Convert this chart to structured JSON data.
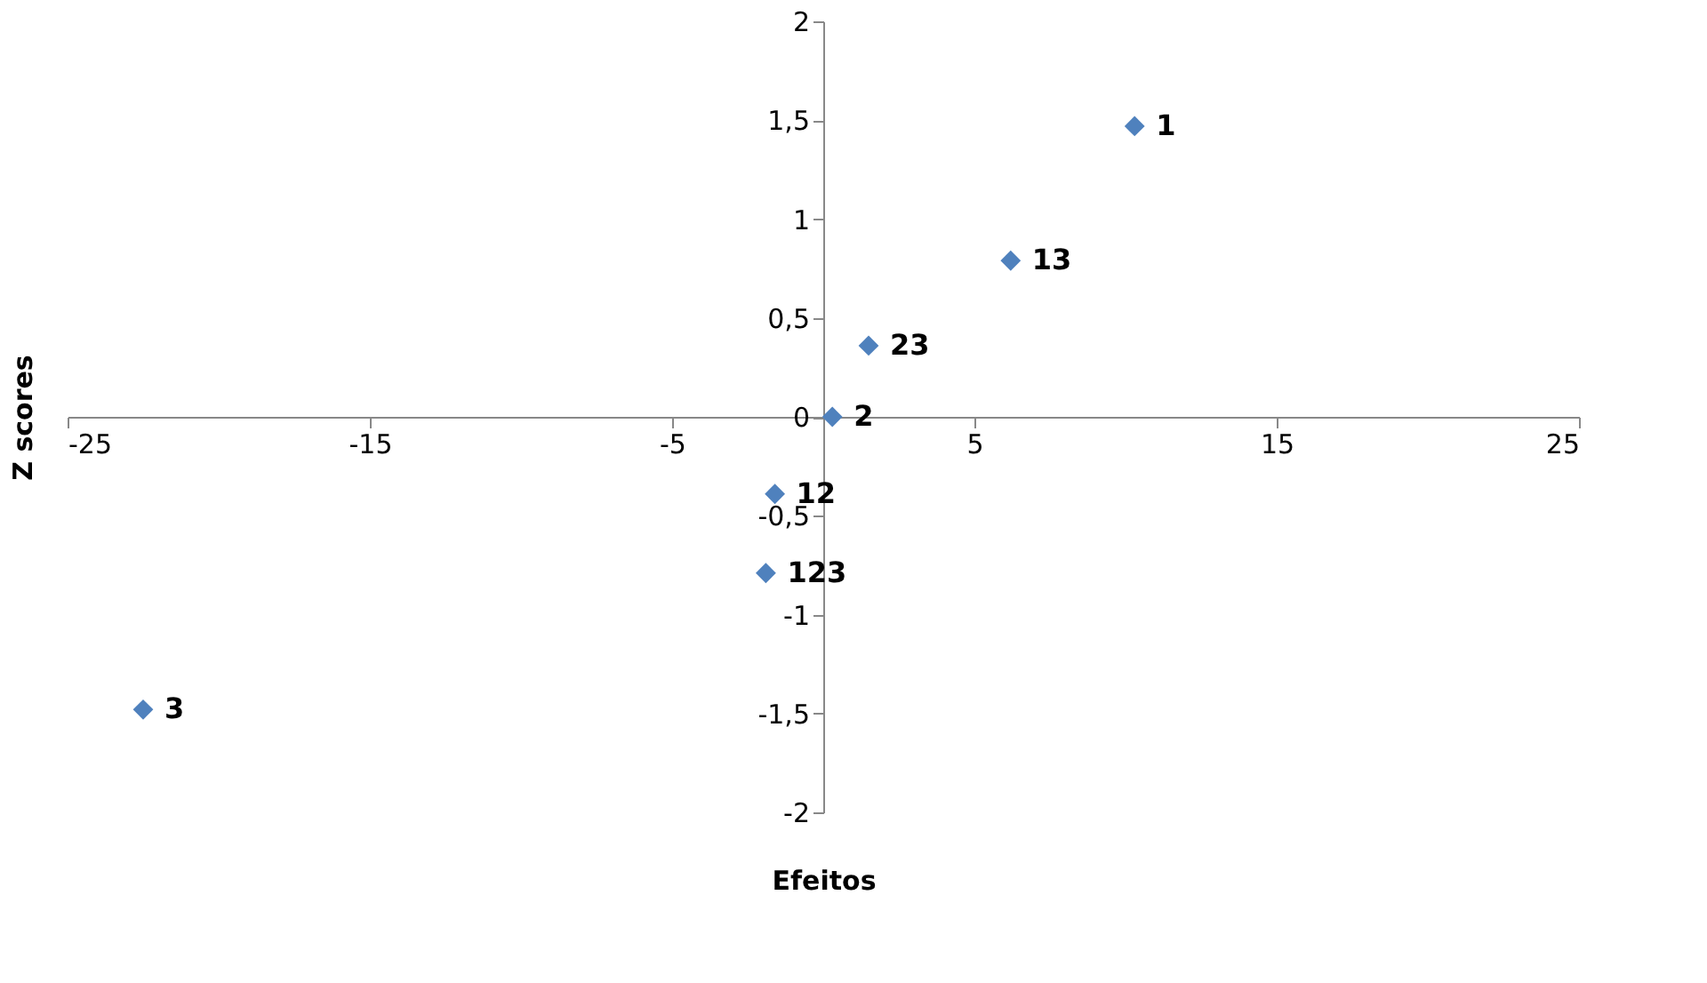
{
  "chart_data": {
    "type": "scatter",
    "xlabel": "Efeitos",
    "ylabel": "Z scores",
    "series": [
      {
        "color": "#4f81bd",
        "x": [
          10.3,
          6.2,
          1.5,
          0.3,
          -1.6,
          -1.9,
          -22.5
        ],
        "values": [
          1.47,
          0.79,
          0.36,
          0,
          -0.39,
          -0.79,
          -1.48
        ]
      }
    ],
    "annotations": [
      {
        "text": "1",
        "x": 10.3,
        "y": 1.47
      },
      {
        "text": "13",
        "x": 6.2,
        "y": 0.79
      },
      {
        "text": "23",
        "x": 1.5,
        "y": 0.36
      },
      {
        "text": "2",
        "x": 0.3,
        "y": 0
      },
      {
        "text": "12",
        "x": -1.6,
        "y": -0.39
      },
      {
        "text": "123",
        "x": -1.9,
        "y": -0.79
      },
      {
        "text": "3",
        "x": -22.5,
        "y": -1.48
      }
    ],
    "marker": "diamond",
    "xlim": [
      -25,
      25
    ],
    "xticks": [
      -25,
      -15,
      -5,
      5,
      15,
      25
    ],
    "ylim": [
      -2,
      2
    ],
    "yticks": [
      -2,
      {
        "value": -1.5,
        "label": "-1,5"
      },
      -1,
      {
        "value": -0.5,
        "label": "-0,5"
      },
      0,
      {
        "value": 0.5,
        "label": "0,5"
      },
      1,
      {
        "value": 1.5,
        "label": "1,5"
      },
      2
    ],
    "grid": false
  }
}
